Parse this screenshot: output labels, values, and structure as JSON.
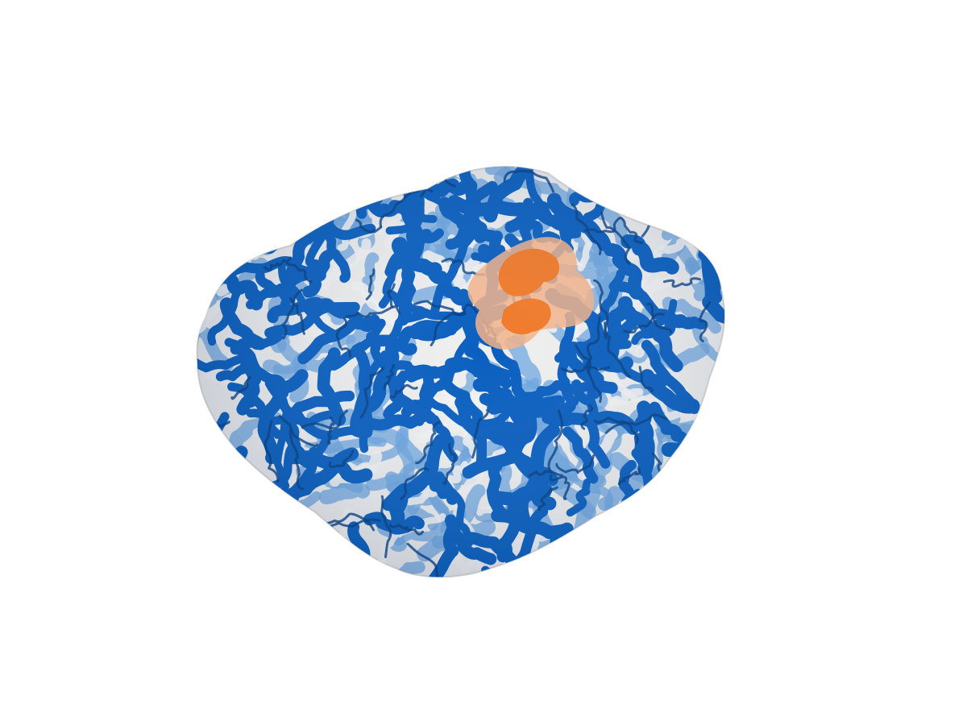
{
  "scene": {
    "background": "#ffffff",
    "colors": {
      "gyri_dark": "#0a5fbf",
      "gyri_light": "#6ea6df",
      "sulci_white": "#f2f2f2",
      "sulci_shadow": "#cfcfcf",
      "highlight_orange": "#f07a2a",
      "highlight_light_orange": "#f3b38a"
    }
  }
}
